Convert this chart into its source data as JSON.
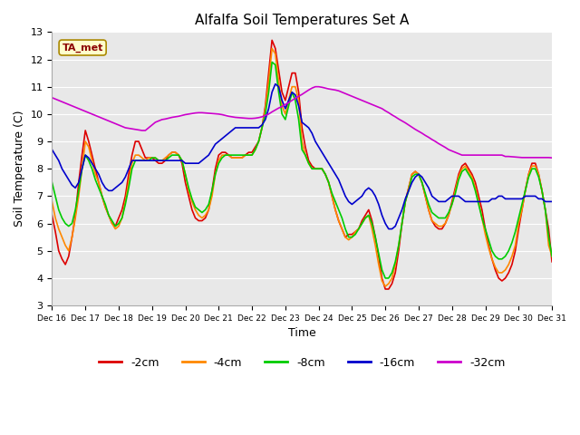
{
  "title": "Alfalfa Soil Temperatures Set A",
  "xlabel": "Time",
  "ylabel": "Soil Temperature (C)",
  "ylim": [
    3.0,
    13.0
  ],
  "yticks": [
    3.0,
    4.0,
    5.0,
    6.0,
    7.0,
    8.0,
    9.0,
    10.0,
    11.0,
    12.0,
    13.0
  ],
  "bg_color": "#e8e8e8",
  "fig_color": "#ffffff",
  "annotation_text": "TA_met",
  "annotation_color": "#8B0000",
  "annotation_bg": "#ffffcc",
  "x_labels": [
    "Dec 16",
    "Dec 17",
    "Dec 18",
    "Dec 19",
    "Dec 20",
    "Dec 21",
    "Dec 22",
    "Dec 23",
    "Dec 24",
    "Dec 25",
    "Dec 26",
    "Dec 27",
    "Dec 28",
    "Dec 29",
    "Dec 30",
    "Dec 31"
  ],
  "n_points": 151,
  "series": {
    "-2cm": {
      "color": "#dd0000",
      "linewidth": 1.2,
      "data_y": [
        6.3,
        5.7,
        5.0,
        4.7,
        4.5,
        4.8,
        5.5,
        6.3,
        7.5,
        8.5,
        9.4,
        9.0,
        8.5,
        8.0,
        7.5,
        7.0,
        6.6,
        6.3,
        6.0,
        5.9,
        6.2,
        6.5,
        7.0,
        7.8,
        8.5,
        9.0,
        9.0,
        8.7,
        8.4,
        8.4,
        8.4,
        8.3,
        8.2,
        8.2,
        8.3,
        8.5,
        8.6,
        8.6,
        8.5,
        8.2,
        7.5,
        7.0,
        6.5,
        6.2,
        6.1,
        6.1,
        6.2,
        6.5,
        7.2,
        8.0,
        8.5,
        8.6,
        8.6,
        8.5,
        8.4,
        8.4,
        8.4,
        8.4,
        8.5,
        8.6,
        8.6,
        8.8,
        9.0,
        9.5,
        10.3,
        11.5,
        12.7,
        12.4,
        11.6,
        10.8,
        10.5,
        11.0,
        11.5,
        11.5,
        10.8,
        9.5,
        8.8,
        8.3,
        8.1,
        8.0,
        8.0,
        8.0,
        7.8,
        7.5,
        7.0,
        6.5,
        6.1,
        5.8,
        5.5,
        5.6,
        5.6,
        5.7,
        5.8,
        6.1,
        6.3,
        6.5,
        6.1,
        5.5,
        4.8,
        4.0,
        3.6,
        3.6,
        3.8,
        4.2,
        5.0,
        6.0,
        6.8,
        7.3,
        7.8,
        7.9,
        7.8,
        7.5,
        7.0,
        6.5,
        6.1,
        5.9,
        5.8,
        5.8,
        6.0,
        6.3,
        6.8,
        7.3,
        7.8,
        8.1,
        8.2,
        8.0,
        7.8,
        7.5,
        7.0,
        6.5,
        5.8,
        5.2,
        4.7,
        4.3,
        4.0,
        3.9,
        4.0,
        4.2,
        4.5,
        5.0,
        5.8,
        6.5,
        7.2,
        7.8,
        8.2,
        8.2,
        7.8,
        7.2,
        6.5,
        5.8,
        4.6
      ]
    },
    "-4cm": {
      "color": "#ff8800",
      "linewidth": 1.2,
      "data_y": [
        6.8,
        6.2,
        5.8,
        5.5,
        5.2,
        5.0,
        5.5,
        6.2,
        7.0,
        8.0,
        9.0,
        8.8,
        8.3,
        7.8,
        7.5,
        7.0,
        6.6,
        6.3,
        6.0,
        5.8,
        5.9,
        6.2,
        6.8,
        7.5,
        8.2,
        8.5,
        8.5,
        8.4,
        8.3,
        8.4,
        8.4,
        8.4,
        8.3,
        8.3,
        8.4,
        8.5,
        8.6,
        8.6,
        8.5,
        8.3,
        7.8,
        7.2,
        6.8,
        6.5,
        6.3,
        6.2,
        6.3,
        6.5,
        7.0,
        7.8,
        8.3,
        8.5,
        8.5,
        8.5,
        8.4,
        8.4,
        8.4,
        8.4,
        8.5,
        8.5,
        8.5,
        8.7,
        9.0,
        9.5,
        10.2,
        11.2,
        12.4,
        12.2,
        11.2,
        10.3,
        10.0,
        10.5,
        11.0,
        11.0,
        10.5,
        9.0,
        8.5,
        8.2,
        8.0,
        8.0,
        8.0,
        8.0,
        7.8,
        7.5,
        7.0,
        6.5,
        6.1,
        5.8,
        5.5,
        5.4,
        5.5,
        5.7,
        5.8,
        6.0,
        6.2,
        6.3,
        5.8,
        5.2,
        4.5,
        3.9,
        3.7,
        3.8,
        4.0,
        4.5,
        5.2,
        6.0,
        6.8,
        7.3,
        7.8,
        7.9,
        7.8,
        7.5,
        7.0,
        6.5,
        6.1,
        6.0,
        5.9,
        5.9,
        6.0,
        6.3,
        6.7,
        7.2,
        7.7,
        8.0,
        8.1,
        7.9,
        7.7,
        7.3,
        6.8,
        6.2,
        5.6,
        5.1,
        4.7,
        4.4,
        4.2,
        4.2,
        4.3,
        4.5,
        4.8,
        5.2,
        6.0,
        6.5,
        7.2,
        7.8,
        8.1,
        8.1,
        7.8,
        7.2,
        6.5,
        5.2,
        4.8
      ]
    },
    "-8cm": {
      "color": "#00cc00",
      "linewidth": 1.2,
      "data_y": [
        7.5,
        7.0,
        6.5,
        6.2,
        6.0,
        5.9,
        6.0,
        6.5,
        7.2,
        8.0,
        8.5,
        8.3,
        8.0,
        7.6,
        7.3,
        7.0,
        6.7,
        6.3,
        6.1,
        5.9,
        6.0,
        6.2,
        6.7,
        7.3,
        8.0,
        8.3,
        8.3,
        8.3,
        8.3,
        8.3,
        8.4,
        8.4,
        8.3,
        8.3,
        8.3,
        8.4,
        8.5,
        8.5,
        8.5,
        8.3,
        7.8,
        7.3,
        6.9,
        6.6,
        6.5,
        6.4,
        6.5,
        6.7,
        7.2,
        7.8,
        8.2,
        8.4,
        8.5,
        8.5,
        8.5,
        8.5,
        8.5,
        8.5,
        8.5,
        8.5,
        8.5,
        8.7,
        9.0,
        9.5,
        10.0,
        10.8,
        11.9,
        11.8,
        10.8,
        10.0,
        9.8,
        10.3,
        10.8,
        10.5,
        9.8,
        8.7,
        8.5,
        8.2,
        8.0,
        8.0,
        8.0,
        8.0,
        7.8,
        7.5,
        7.1,
        6.8,
        6.5,
        6.2,
        5.8,
        5.5,
        5.5,
        5.6,
        5.8,
        6.0,
        6.2,
        6.3,
        6.0,
        5.5,
        4.9,
        4.3,
        4.0,
        4.0,
        4.2,
        4.6,
        5.2,
        6.0,
        6.8,
        7.2,
        7.7,
        7.8,
        7.8,
        7.5,
        7.1,
        6.7,
        6.4,
        6.3,
        6.2,
        6.2,
        6.2,
        6.4,
        6.7,
        7.1,
        7.6,
        7.9,
        8.0,
        7.8,
        7.6,
        7.2,
        6.7,
        6.2,
        5.8,
        5.4,
        5.0,
        4.8,
        4.7,
        4.7,
        4.8,
        5.0,
        5.3,
        5.7,
        6.2,
        6.7,
        7.2,
        7.7,
        8.0,
        8.0,
        7.7,
        7.2,
        6.5,
        5.5,
        4.8
      ]
    },
    "-16cm": {
      "color": "#0000cc",
      "linewidth": 1.2,
      "data_y": [
        8.7,
        8.5,
        8.3,
        8.0,
        7.8,
        7.6,
        7.4,
        7.3,
        7.5,
        8.0,
        8.5,
        8.4,
        8.2,
        8.0,
        7.8,
        7.5,
        7.3,
        7.2,
        7.2,
        7.3,
        7.4,
        7.5,
        7.7,
        8.0,
        8.3,
        8.3,
        8.3,
        8.3,
        8.3,
        8.3,
        8.3,
        8.3,
        8.3,
        8.3,
        8.3,
        8.3,
        8.3,
        8.3,
        8.3,
        8.3,
        8.2,
        8.2,
        8.2,
        8.2,
        8.2,
        8.3,
        8.4,
        8.5,
        8.7,
        8.9,
        9.0,
        9.1,
        9.2,
        9.3,
        9.4,
        9.5,
        9.5,
        9.5,
        9.5,
        9.5,
        9.5,
        9.5,
        9.5,
        9.6,
        9.8,
        10.2,
        10.8,
        11.1,
        11.0,
        10.5,
        10.2,
        10.5,
        10.8,
        10.7,
        10.3,
        9.7,
        9.6,
        9.5,
        9.3,
        9.0,
        8.8,
        8.6,
        8.4,
        8.2,
        8.0,
        7.8,
        7.6,
        7.3,
        7.0,
        6.8,
        6.7,
        6.8,
        6.9,
        7.0,
        7.2,
        7.3,
        7.2,
        7.0,
        6.7,
        6.3,
        6.0,
        5.8,
        5.8,
        5.9,
        6.2,
        6.5,
        6.9,
        7.2,
        7.5,
        7.7,
        7.8,
        7.7,
        7.5,
        7.3,
        7.0,
        6.9,
        6.8,
        6.8,
        6.8,
        6.9,
        7.0,
        7.0,
        7.0,
        6.9,
        6.8,
        6.8,
        6.8,
        6.8,
        6.8,
        6.8,
        6.8,
        6.8,
        6.9,
        6.9,
        7.0,
        7.0,
        6.9,
        6.9,
        6.9,
        6.9,
        6.9,
        6.9,
        7.0,
        7.0,
        7.0,
        7.0,
        6.9,
        6.9,
        6.8,
        6.8,
        6.8
      ]
    },
    "-32cm": {
      "color": "#cc00cc",
      "linewidth": 1.2,
      "data_y": [
        10.6,
        10.55,
        10.5,
        10.45,
        10.4,
        10.35,
        10.3,
        10.25,
        10.2,
        10.15,
        10.1,
        10.05,
        10.0,
        9.95,
        9.9,
        9.85,
        9.8,
        9.75,
        9.7,
        9.65,
        9.6,
        9.55,
        9.5,
        9.48,
        9.46,
        9.44,
        9.42,
        9.4,
        9.4,
        9.5,
        9.6,
        9.7,
        9.75,
        9.8,
        9.82,
        9.85,
        9.88,
        9.9,
        9.92,
        9.95,
        9.98,
        10.0,
        10.02,
        10.04,
        10.05,
        10.05,
        10.04,
        10.03,
        10.02,
        10.01,
        10.0,
        9.98,
        9.95,
        9.92,
        9.9,
        9.88,
        9.87,
        9.86,
        9.85,
        9.84,
        9.84,
        9.85,
        9.87,
        9.9,
        9.95,
        10.0,
        10.08,
        10.15,
        10.22,
        10.28,
        10.35,
        10.42,
        10.5,
        10.58,
        10.65,
        10.72,
        10.8,
        10.88,
        10.95,
        11.0,
        11.0,
        10.98,
        10.95,
        10.92,
        10.9,
        10.88,
        10.85,
        10.8,
        10.75,
        10.7,
        10.65,
        10.6,
        10.55,
        10.5,
        10.45,
        10.4,
        10.35,
        10.3,
        10.25,
        10.2,
        10.12,
        10.05,
        9.97,
        9.9,
        9.82,
        9.75,
        9.68,
        9.6,
        9.52,
        9.44,
        9.37,
        9.3,
        9.22,
        9.15,
        9.07,
        9.0,
        8.92,
        8.85,
        8.78,
        8.7,
        8.65,
        8.6,
        8.55,
        8.5,
        8.5,
        8.5,
        8.5,
        8.5,
        8.5,
        8.5,
        8.5,
        8.5,
        8.5,
        8.5,
        8.5,
        8.5,
        8.45,
        8.45,
        8.44,
        8.43,
        8.42,
        8.41,
        8.41,
        8.41,
        8.41,
        8.41,
        8.41,
        8.41,
        8.41,
        8.41,
        8.4
      ]
    }
  },
  "legend_entries": [
    "-2cm",
    "-4cm",
    "-8cm",
    "-16cm",
    "-32cm"
  ],
  "legend_colors": [
    "#dd0000",
    "#ff8800",
    "#00cc00",
    "#0000cc",
    "#cc00cc"
  ]
}
